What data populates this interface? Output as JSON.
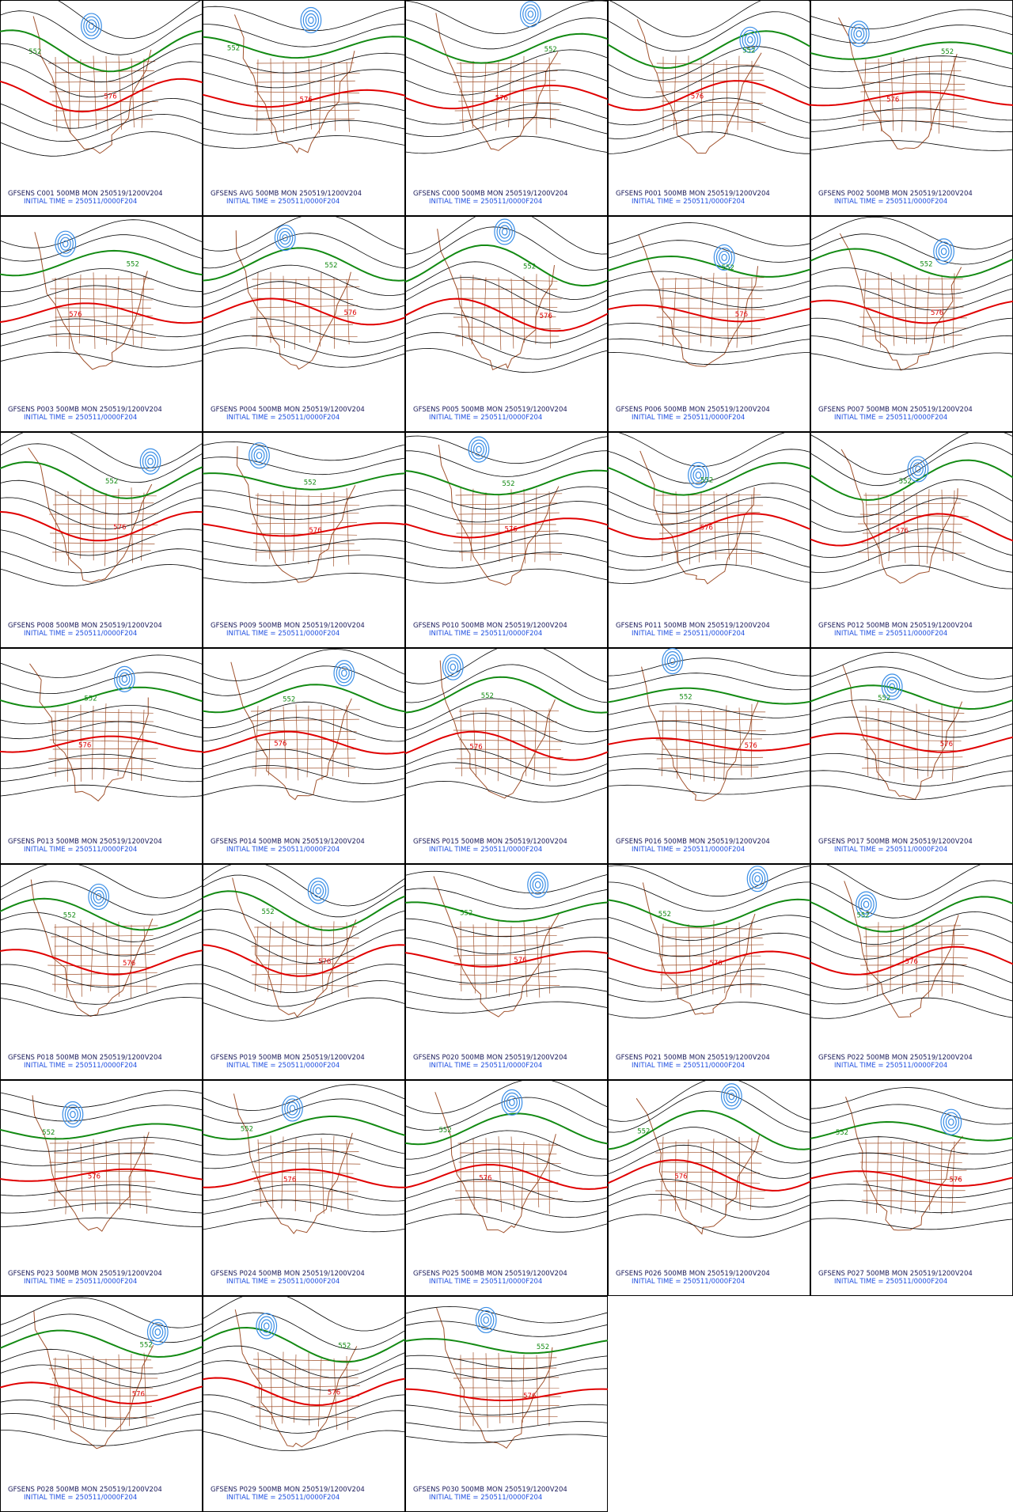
{
  "panels": [
    {
      "title": "GFSENS C001 500MB MON 250519/1200V204",
      "init": "INITIAL TIME = 250511/0000F204",
      "contour_labels": [
        "552",
        "576"
      ]
    },
    {
      "title": "GFSENS AVG 500MB MON 250519/1200V204",
      "init": "INITIAL TIME = 250511/0000F204",
      "contour_labels": [
        "552",
        "576"
      ]
    },
    {
      "title": "GFSENS C000 500MB MON 250519/1200V204",
      "init": "INITIAL TIME = 250511/0000F204",
      "contour_labels": [
        "552",
        "576"
      ]
    },
    {
      "title": "GFSENS P001 500MB MON 250519/1200V204",
      "init": "INITIAL TIME = 250511/0000F204",
      "contour_labels": [
        "552",
        "576"
      ]
    },
    {
      "title": "GFSENS P002 500MB MON 250519/1200V204",
      "init": "INITIAL TIME = 250511/0000F204",
      "contour_labels": [
        "552",
        "576"
      ]
    },
    {
      "title": "GFSENS P003 500MB MON 250519/1200V204",
      "init": "INITIAL TIME = 250511/0000F204",
      "contour_labels": [
        "552",
        "576"
      ]
    },
    {
      "title": "GFSENS P004 500MB MON 250519/1200V204",
      "init": "INITIAL TIME = 250511/0000F204",
      "contour_labels": [
        "552",
        "576"
      ]
    },
    {
      "title": "GFSENS P005 500MB MON 250519/1200V204",
      "init": "INITIAL TIME = 250511/0000F204",
      "contour_labels": [
        "552",
        "576"
      ]
    },
    {
      "title": "GFSENS P006 500MB MON 250519/1200V204",
      "init": "INITIAL TIME = 250511/0000F204",
      "contour_labels": [
        "552",
        "576"
      ]
    },
    {
      "title": "GFSENS P007 500MB MON 250519/1200V204",
      "init": "INITIAL TIME = 250511/0000F204",
      "contour_labels": [
        "552",
        "576"
      ]
    },
    {
      "title": "GFSENS P008 500MB MON 250519/1200V204",
      "init": "INITIAL TIME = 250511/0000F204",
      "contour_labels": [
        "552",
        "576"
      ]
    },
    {
      "title": "GFSENS P009 500MB MON 250519/1200V204",
      "init": "INITIAL TIME = 250511/0000F204",
      "contour_labels": [
        "552",
        "576"
      ]
    },
    {
      "title": "GFSENS P010 500MB MON 250519/1200V204",
      "init": "INITIAL TIME = 250511/0000F204",
      "contour_labels": [
        "552",
        "576"
      ]
    },
    {
      "title": "GFSENS P011 500MB MON 250519/1200V204",
      "init": "INITIAL TIME = 250511/0000F204",
      "contour_labels": [
        "552",
        "576"
      ]
    },
    {
      "title": "GFSENS P012 500MB MON 250519/1200V204",
      "init": "INITIAL TIME = 250511/0000F204",
      "contour_labels": [
        "552",
        "576"
      ]
    },
    {
      "title": "GFSENS P013 500MB MON 250519/1200V204",
      "init": "INITIAL TIME = 250511/0000F204",
      "contour_labels": [
        "552",
        "576"
      ]
    },
    {
      "title": "GFSENS P014 500MB MON 250519/1200V204",
      "init": "INITIAL TIME = 250511/0000F204",
      "contour_labels": [
        "552",
        "576"
      ]
    },
    {
      "title": "GFSENS P015 500MB MON 250519/1200V204",
      "init": "INITIAL TIME = 250511/0000F204",
      "contour_labels": [
        "552",
        "576"
      ]
    },
    {
      "title": "GFSENS P016 500MB MON 250519/1200V204",
      "init": "INITIAL TIME = 250511/0000F204",
      "contour_labels": [
        "552",
        "576"
      ]
    },
    {
      "title": "GFSENS P017 500MB MON 250519/1200V204",
      "init": "INITIAL TIME = 250511/0000F204",
      "contour_labels": [
        "552",
        "576"
      ]
    },
    {
      "title": "GFSENS P018 500MB MON 250519/1200V204",
      "init": "INITIAL TIME = 250511/0000F204",
      "contour_labels": [
        "552",
        "576"
      ]
    },
    {
      "title": "GFSENS P019 500MB MON 250519/1200V204",
      "init": "INITIAL TIME = 250511/0000F204",
      "contour_labels": [
        "552",
        "576"
      ]
    },
    {
      "title": "GFSENS P020 500MB MON 250519/1200V204",
      "init": "INITIAL TIME = 250511/0000F204",
      "contour_labels": [
        "552",
        "576"
      ]
    },
    {
      "title": "GFSENS P021 500MB MON 250519/1200V204",
      "init": "INITIAL TIME = 250511/0000F204",
      "contour_labels": [
        "552",
        "576"
      ]
    },
    {
      "title": "GFSENS P022 500MB MON 250519/1200V204",
      "init": "INITIAL TIME = 250511/0000F204",
      "contour_labels": [
        "552",
        "576"
      ]
    },
    {
      "title": "GFSENS P023 500MB MON 250519/1200V204",
      "init": "INITIAL TIME = 250511/0000F204",
      "contour_labels": [
        "552",
        "576"
      ]
    },
    {
      "title": "GFSENS P024 500MB MON 250519/1200V204",
      "init": "INITIAL TIME = 250511/0000F204",
      "contour_labels": [
        "552",
        "576"
      ]
    },
    {
      "title": "GFSENS P025 500MB MON 250519/1200V204",
      "init": "INITIAL TIME = 250511/0000F204",
      "contour_labels": [
        "552",
        "576"
      ]
    },
    {
      "title": "GFSENS P026 500MB MON 250519/1200V204",
      "init": "INITIAL TIME = 250511/0000F204",
      "contour_labels": [
        "552",
        "576"
      ]
    },
    {
      "title": "GFSENS P027 500MB MON 250519/1200V204",
      "init": "INITIAL TIME = 250511/0000F204",
      "contour_labels": [
        "552",
        "576"
      ]
    },
    {
      "title": "GFSENS P028 500MB MON 250519/1200V204",
      "init": "INITIAL TIME = 250511/0000F204",
      "contour_labels": [
        "552",
        "576"
      ]
    },
    {
      "title": "GFSENS P029 500MB MON 250519/1200V204",
      "init": "INITIAL TIME = 250511/0000F204",
      "contour_labels": [
        "552",
        "576"
      ]
    },
    {
      "title": "GFSENS P030 500MB MON 250519/1200V204",
      "init": "INITIAL TIME = 250511/0000F204",
      "contour_labels": [
        "552",
        "576"
      ]
    }
  ]
}
